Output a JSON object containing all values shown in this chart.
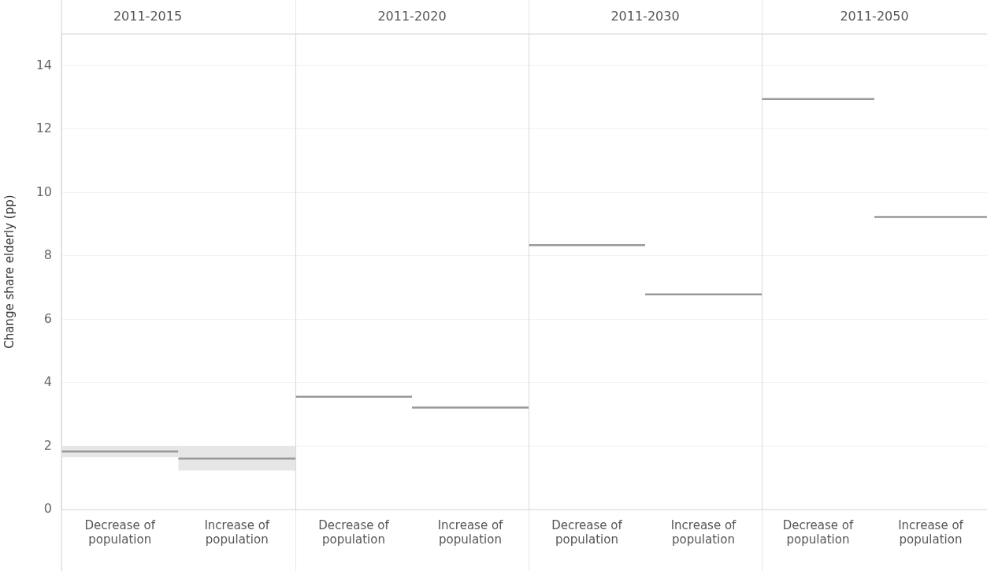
{
  "chart_data": [
    {
      "type": "box",
      "title": "2011-2015",
      "ylabel": "Change share elderly (pp)",
      "categories": [
        "Decrease of population",
        "Increase of population"
      ],
      "series": [
        {
          "color": "#e6e6e6",
          "boxes": [
            {
              "low": 1.65,
              "q1": 1.65,
              "median": 1.83,
              "q3": 2.01,
              "high": 2.01
            },
            {
              "low": 1.23,
              "q1": 1.23,
              "median": 1.61,
              "q3": 2.01,
              "high": 2.01
            }
          ]
        }
      ],
      "ylim": [
        0,
        15
      ],
      "yticks": [
        0,
        2,
        4,
        6,
        8,
        10,
        12,
        14
      ],
      "grid": "y"
    },
    {
      "type": "box",
      "title": "2011-2020",
      "categories": [
        "Decrease of population",
        "Increase of population"
      ],
      "series": [
        {
          "color": "#999999",
          "boxes": [
            {
              "low": 3.56,
              "q1": 3.56,
              "median": 3.56,
              "q3": 3.56,
              "high": 3.56
            },
            {
              "low": 3.22,
              "q1": 3.22,
              "median": 3.22,
              "q3": 3.22,
              "high": 3.22
            }
          ]
        }
      ],
      "ylim": [
        0,
        15
      ],
      "yticks": [
        0,
        2,
        4,
        6,
        8,
        10,
        12,
        14
      ],
      "grid": "y",
      "tick_labels": "x"
    },
    {
      "type": "box",
      "title": "2011-2030",
      "categories": [
        "Decrease of population",
        "Increase of population"
      ],
      "series": [
        {
          "color": "#999999",
          "boxes": [
            {
              "low": 8.34,
              "q1": 8.34,
              "median": 8.34,
              "q3": 8.34,
              "high": 8.34
            },
            {
              "low": 6.79,
              "q1": 6.79,
              "median": 6.79,
              "q3": 6.79,
              "high": 6.79
            }
          ]
        }
      ],
      "ylim": [
        0,
        15
      ],
      "yticks": [
        0,
        2,
        4,
        6,
        8,
        10,
        12,
        14
      ],
      "grid": "y",
      "tick_labels": "x"
    },
    {
      "type": "box",
      "title": "2011-2050",
      "categories": [
        "Decrease of population",
        "Increase of population"
      ],
      "series": [
        {
          "color": "#999999",
          "boxes": [
            {
              "low": 12.95,
              "q1": 12.95,
              "median": 12.95,
              "q3": 12.95,
              "high": 12.95
            },
            {
              "low": 9.23,
              "q1": 9.23,
              "median": 9.23,
              "q3": 9.23,
              "high": 9.23
            }
          ]
        }
      ],
      "ylim": [
        0,
        15
      ],
      "yticks": [
        0,
        2,
        4,
        6,
        8,
        10,
        12,
        14
      ],
      "grid": "y",
      "tick_labels": "x"
    }
  ]
}
